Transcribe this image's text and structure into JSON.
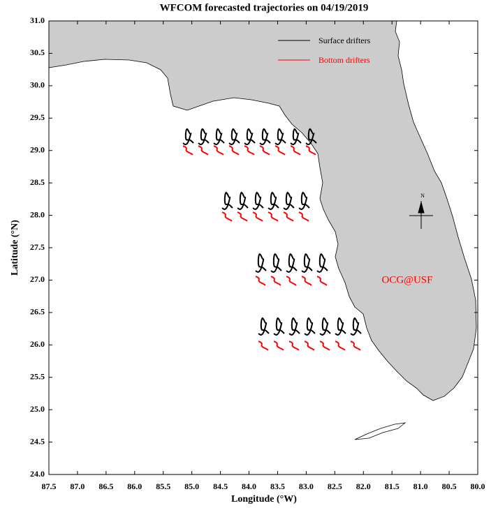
{
  "chart_data": {
    "type": "map",
    "title": "WFCOM forecasted trajectories on 04/19/2019",
    "x_label": "Longitude (°W)",
    "y_label": "Latitude (°N)",
    "xlim": [
      87.5,
      80
    ],
    "ylim": [
      24,
      31
    ],
    "xticks": [
      87.5,
      {
        "value": 87,
        "label": "87.0"
      },
      86.5,
      {
        "value": 86,
        "label": "86.0"
      },
      85.5,
      {
        "value": 85,
        "label": "85.0"
      },
      84.5,
      {
        "value": 84,
        "label": "84.0"
      },
      83.5,
      {
        "value": 83,
        "label": "83.0"
      },
      82.5,
      {
        "value": 82,
        "label": "82.0"
      },
      81.5,
      {
        "value": 81,
        "label": "81.0"
      },
      80.5,
      {
        "value": 80,
        "label": "80.0"
      }
    ],
    "yticks": [
      {
        "value": 24,
        "label": "24.0"
      },
      24.5,
      {
        "value": 25,
        "label": "25.0"
      },
      25.5,
      {
        "value": 26,
        "label": "26.0"
      },
      26.5,
      {
        "value": 27,
        "label": "27.0"
      },
      27.5,
      {
        "value": 28,
        "label": "28.0"
      },
      28.5,
      {
        "value": 29,
        "label": "29.0"
      },
      29.5,
      {
        "value": 30,
        "label": "30.0"
      },
      30.5,
      {
        "value": 31,
        "label": "31.0"
      }
    ],
    "legend": [
      {
        "name": "Surface drifters",
        "color": "#000000"
      },
      {
        "name": "Bottom drifters",
        "color": "#ff0000"
      }
    ],
    "annotation": "OCG@USF",
    "compass": "N"
  }
}
